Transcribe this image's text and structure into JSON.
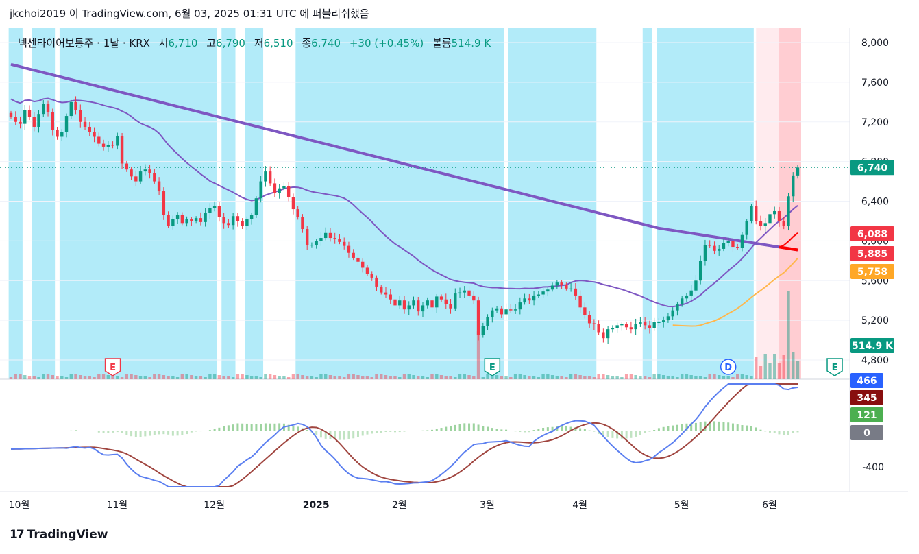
{
  "header": {
    "text": "jkchoi2019 이 TradingView.com, 6월 03, 2025 01:31 UTC 에 퍼블리쉬했음"
  },
  "legend": {
    "symbol": "넥센타이어보통주 · 1날 · KRX",
    "open_label": "시",
    "open": "6,710",
    "high_label": "고",
    "high": "6,790",
    "low_label": "저",
    "low": "6,510",
    "close_label": "종",
    "close": "6,740",
    "change": "+30 (+0.45%)",
    "volume_label": "볼륨",
    "volume": "514.9 K"
  },
  "footer": {
    "logo": "17",
    "brand": "TradingView"
  },
  "colors": {
    "up": "#089981",
    "down": "#f23645",
    "ma_purple": "#7e57c2",
    "bg_blue": "#b2ebf9",
    "bg_red": "#ffcdd2",
    "ma_red": "#ff0000",
    "ma_orange": "#ffb74d",
    "macd_blue": "#5b7ff0",
    "signal_brown": "#a0453f"
  },
  "chart_data": {
    "type": "candlestick",
    "price_axis": {
      "ticks": [
        "8,000",
        "7,600",
        "7,200",
        "6,800",
        "6,400",
        "6,000",
        "5,600",
        "5,200",
        "4,800"
      ],
      "range": [
        4800,
        8000
      ]
    },
    "x_axis_labels": [
      "10월",
      "11월",
      "12월",
      "2025",
      "2월",
      "3월",
      "4월",
      "5월",
      "6월"
    ],
    "price_badges": [
      {
        "label": "6,740",
        "value": 6740,
        "color": "#089981"
      },
      {
        "label": "6,088",
        "value": 6088,
        "color": "#f23645"
      },
      {
        "label": "5,885",
        "value": 5885,
        "color": "#f23645"
      },
      {
        "label": "5,758",
        "value": 5758,
        "color": "#ffa726"
      },
      {
        "label": "514.9 K",
        "value": 0,
        "color": "#089981"
      }
    ],
    "indicator_axis": {
      "ticks": [
        "-400"
      ],
      "range": [
        -600,
        600
      ]
    },
    "indicator_badges": [
      {
        "label": "466",
        "color": "#2962ff"
      },
      {
        "label": "345",
        "color": "#880e0e"
      },
      {
        "label": "121",
        "color": "#4caf50"
      },
      {
        "label": "0",
        "color": "#787b86"
      }
    ],
    "event_markers": [
      {
        "label": "E",
        "date_index": 22,
        "kind": "earnings-red"
      },
      {
        "label": "E",
        "date_index": 104,
        "kind": "earnings-green"
      },
      {
        "label": "D",
        "date_index": 155,
        "kind": "dividend"
      },
      {
        "label": "E",
        "date_index": 178,
        "kind": "earnings-green"
      }
    ],
    "closes": [
      7250,
      7200,
      7180,
      7320,
      7250,
      7150,
      7280,
      7380,
      7300,
      7120,
      7050,
      7100,
      7260,
      7400,
      7320,
      7200,
      7150,
      7100,
      7050,
      6980,
      6950,
      6970,
      6960,
      7060,
      6780,
      6720,
      6650,
      6600,
      6700,
      6720,
      6680,
      6600,
      6500,
      6260,
      6150,
      6220,
      6260,
      6180,
      6220,
      6200,
      6230,
      6190,
      6280,
      6330,
      6350,
      6240,
      6180,
      6160,
      6250,
      6200,
      6150,
      6220,
      6260,
      6430,
      6600,
      6700,
      6580,
      6480,
      6530,
      6550,
      6440,
      6320,
      6240,
      6120,
      5960,
      5960,
      6000,
      6030,
      6080,
      6030,
      6020,
      5990,
      5950,
      5880,
      5830,
      5790,
      5730,
      5670,
      5630,
      5540,
      5480,
      5460,
      5410,
      5350,
      5400,
      5310,
      5350,
      5400,
      5290,
      5350,
      5400,
      5330,
      5440,
      5410,
      5360,
      5320,
      5470,
      5480,
      5500,
      5450,
      5400,
      5050,
      5140,
      5230,
      5300,
      5320,
      5260,
      5310,
      5300,
      5310,
      5380,
      5420,
      5400,
      5450,
      5460,
      5490,
      5510,
      5550,
      5580,
      5560,
      5520,
      5520,
      5450,
      5330,
      5250,
      5170,
      5160,
      5080,
      5020,
      5110,
      5120,
      5150,
      5160,
      5130,
      5110,
      5160,
      5180,
      5150,
      5120,
      5180,
      5180,
      5200,
      5240,
      5300,
      5360,
      5420,
      5450,
      5500,
      5600,
      5800,
      5960,
      5950,
      5900,
      5920,
      5980,
      6000,
      5940,
      5930,
      6060,
      6200,
      6350,
      6200,
      6150,
      6180,
      6270,
      6300,
      6200,
      6150,
      6450,
      6660,
      6740
    ],
    "series": [
      {
        "name": "MA long",
        "color": "#7e57c2"
      },
      {
        "name": "MA mid",
        "color": "#7e57c2"
      },
      {
        "name": "MA red",
        "color": "#ff0000"
      },
      {
        "name": "MA orange",
        "color": "#ffb74d"
      },
      {
        "name": "MACD",
        "color": "#5b7ff0"
      },
      {
        "name": "Signal",
        "color": "#a0453f"
      }
    ]
  }
}
